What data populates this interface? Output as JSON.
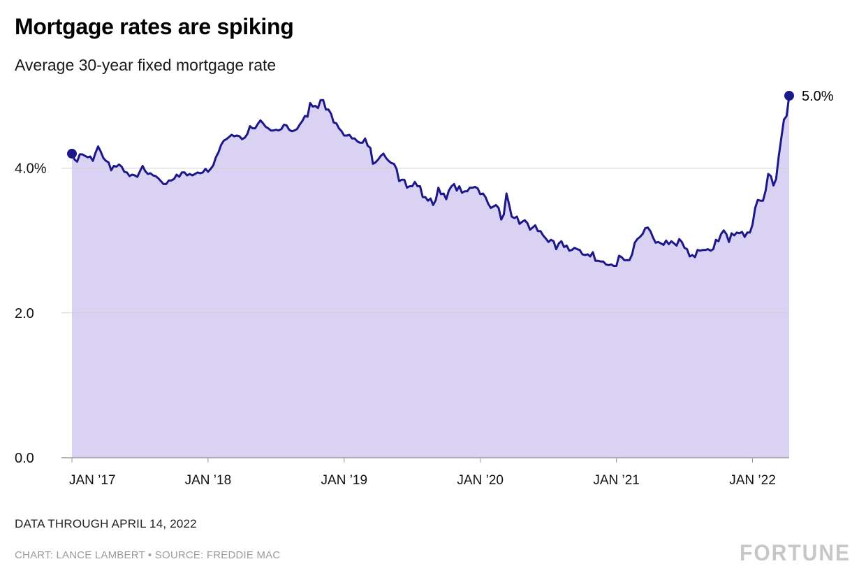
{
  "header": {
    "title": "Mortgage rates are spiking",
    "subtitle": "Average 30-year fixed mortgage rate"
  },
  "footer": {
    "note": "DATA THROUGH APRIL 14, 2022",
    "credit": "CHART: LANCE LAMBERT • SOURCE: FREDDIE MAC",
    "logo": "FORTUNE"
  },
  "chart_data": {
    "type": "area",
    "title": "Mortgage rates are spiking",
    "subtitle": "Average 30-year fixed mortgage rate",
    "unit": "%",
    "frequency": "weekly",
    "x_start": "JAN 2017",
    "x_end": "APRIL 14, 2022",
    "ylim": [
      0,
      5.0
    ],
    "grid": "horizontal",
    "legend": "none",
    "end_label": "5.0%",
    "colors": {
      "line": "#1d178c",
      "fill": "#d9d2f2",
      "grid": "#d0d0d0",
      "axis": "#9b9b9b",
      "tick_text": "#111111",
      "end_label_text": "#000000"
    },
    "y_ticks": [
      {
        "label": "0.0",
        "value": 0
      },
      {
        "label": "2.0",
        "value": 2
      },
      {
        "label": "4.0%",
        "value": 4
      }
    ],
    "x_ticks": [
      {
        "label": "JAN ’17",
        "index": 0
      },
      {
        "label": "JAN ’18",
        "index": 52
      },
      {
        "label": "JAN ’19",
        "index": 104
      },
      {
        "label": "JAN ’20",
        "index": 156
      },
      {
        "label": "JAN ’21",
        "index": 208
      },
      {
        "label": "JAN ’22",
        "index": 260
      }
    ],
    "values": [
      4.2,
      4.12,
      4.09,
      4.19,
      4.19,
      4.17,
      4.15,
      4.16,
      4.1,
      4.21,
      4.3,
      4.23,
      4.14,
      4.1,
      4.08,
      3.97,
      4.03,
      4.02,
      4.05,
      4.02,
      3.95,
      3.94,
      3.89,
      3.91,
      3.9,
      3.88,
      3.96,
      4.03,
      3.96,
      3.92,
      3.93,
      3.9,
      3.89,
      3.86,
      3.82,
      3.78,
      3.78,
      3.83,
      3.83,
      3.85,
      3.91,
      3.88,
      3.94,
      3.94,
      3.9,
      3.92,
      3.9,
      3.92,
      3.94,
      3.93,
      3.94,
      3.99,
      3.95,
      3.99,
      4.04,
      4.15,
      4.22,
      4.32,
      4.38,
      4.4,
      4.43,
      4.46,
      4.44,
      4.45,
      4.44,
      4.4,
      4.42,
      4.47,
      4.58,
      4.55,
      4.55,
      4.61,
      4.66,
      4.62,
      4.57,
      4.55,
      4.52,
      4.52,
      4.53,
      4.52,
      4.54,
      4.6,
      4.59,
      4.53,
      4.51,
      4.52,
      4.54,
      4.6,
      4.65,
      4.72,
      4.71,
      4.9,
      4.85,
      4.86,
      4.83,
      4.94,
      4.94,
      4.81,
      4.81,
      4.75,
      4.63,
      4.62,
      4.55,
      4.51,
      4.45,
      4.45,
      4.46,
      4.41,
      4.41,
      4.37,
      4.35,
      4.35,
      4.41,
      4.31,
      4.28,
      4.06,
      4.08,
      4.12,
      4.17,
      4.2,
      4.14,
      4.1,
      4.07,
      4.06,
      3.99,
      3.82,
      3.84,
      3.84,
      3.73,
      3.75,
      3.75,
      3.81,
      3.75,
      3.75,
      3.6,
      3.6,
      3.55,
      3.58,
      3.49,
      3.56,
      3.73,
      3.64,
      3.65,
      3.57,
      3.69,
      3.75,
      3.78,
      3.69,
      3.75,
      3.66,
      3.68,
      3.68,
      3.73,
      3.73,
      3.74,
      3.72,
      3.64,
      3.65,
      3.6,
      3.51,
      3.45,
      3.47,
      3.49,
      3.45,
      3.29,
      3.36,
      3.65,
      3.5,
      3.33,
      3.31,
      3.33,
      3.23,
      3.26,
      3.28,
      3.24,
      3.15,
      3.18,
      3.21,
      3.13,
      3.13,
      3.07,
      3.03,
      2.98,
      3.01,
      2.99,
      2.88,
      2.96,
      2.99,
      2.91,
      2.93,
      2.86,
      2.87,
      2.9,
      2.88,
      2.87,
      2.81,
      2.8,
      2.81,
      2.78,
      2.84,
      2.72,
      2.72,
      2.71,
      2.71,
      2.67,
      2.66,
      2.67,
      2.65,
      2.65,
      2.79,
      2.77,
      2.73,
      2.73,
      2.73,
      2.81,
      2.97,
      3.02,
      3.05,
      3.09,
      3.17,
      3.18,
      3.13,
      3.04,
      2.97,
      2.98,
      2.96,
      2.94,
      3.0,
      2.95,
      2.99,
      2.96,
      2.93,
      3.02,
      2.98,
      2.9,
      2.88,
      2.78,
      2.8,
      2.77,
      2.87,
      2.86,
      2.87,
      2.87,
      2.88,
      2.86,
      2.88,
      3.01,
      2.99,
      3.09,
      3.14,
      3.09,
      2.98,
      3.1,
      3.07,
      3.11,
      3.1,
      3.12,
      3.05,
      3.11,
      3.11,
      3.22,
      3.45,
      3.56,
      3.55,
      3.55,
      3.69,
      3.92,
      3.89,
      3.76,
      3.85,
      4.16,
      4.42,
      4.67,
      4.72,
      5.0
    ]
  }
}
